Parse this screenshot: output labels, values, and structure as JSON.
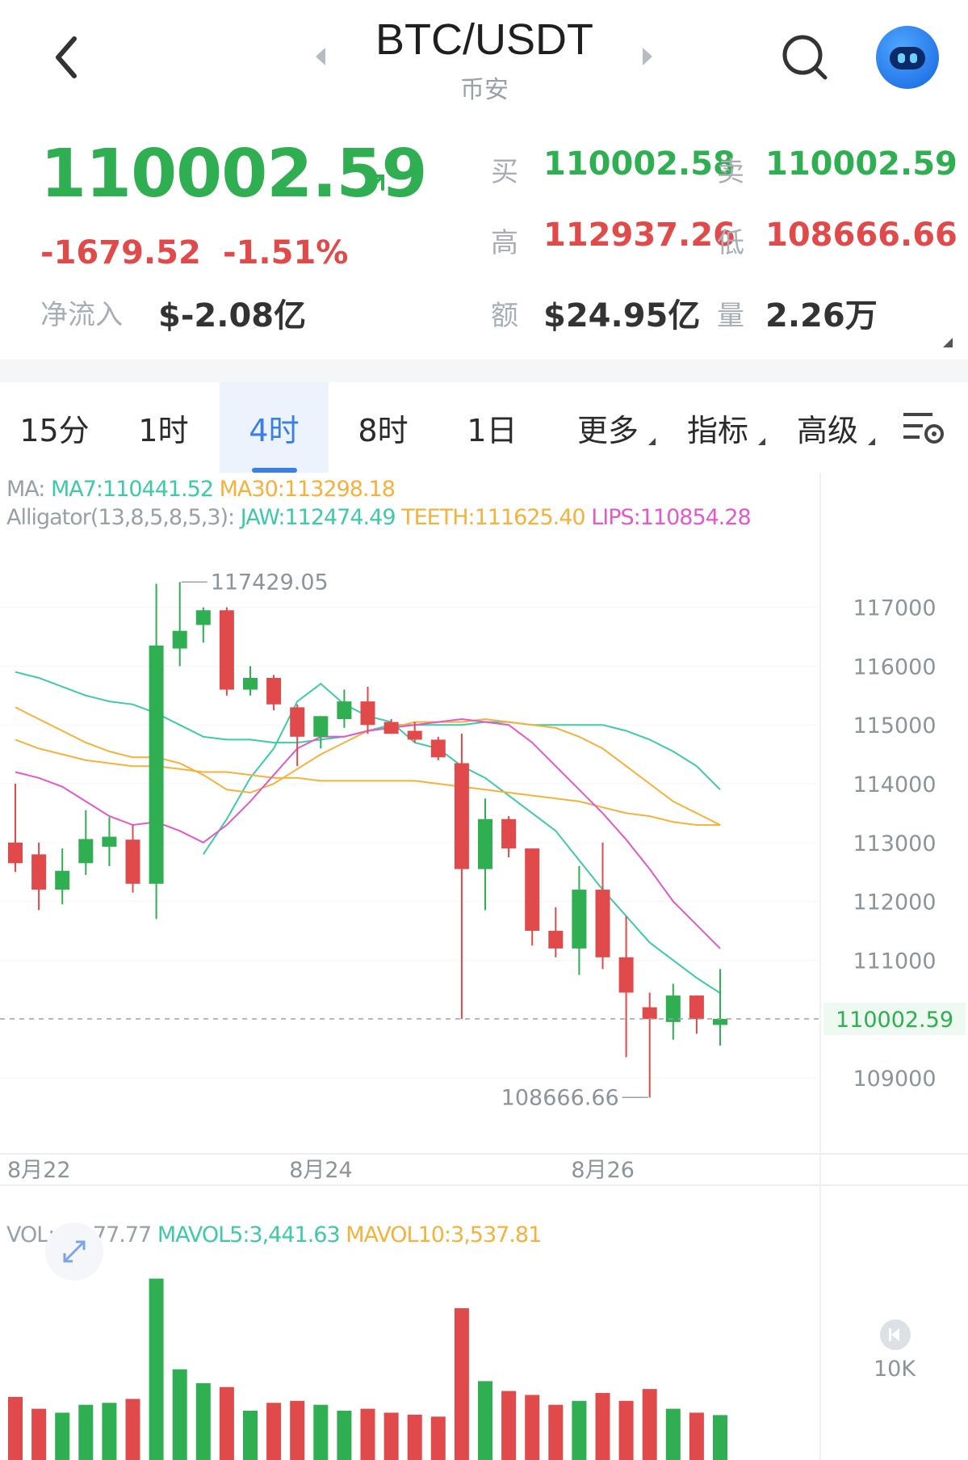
{
  "header": {
    "title": "BTC/USDT",
    "exchange": "币安"
  },
  "price": {
    "last": "110002.59",
    "change_abs": "-1679.52",
    "change_pct": "-1.51%",
    "inflow_label": "净流入",
    "inflow_value": "$-2.08亿"
  },
  "stats": {
    "buy_label": "买",
    "buy_value": "110002.58",
    "sell_label": "卖",
    "sell_value": "110002.59",
    "high_label": "高",
    "high_value": "112937.26",
    "low_label": "低",
    "low_value": "108666.66",
    "amount_label": "额",
    "amount_value": "$24.95亿",
    "volume_label": "量",
    "volume_value": "2.26万"
  },
  "tabs": [
    {
      "label": "15分",
      "active": false
    },
    {
      "label": "1时",
      "active": false
    },
    {
      "label": "4时",
      "active": true
    },
    {
      "label": "8时",
      "active": false
    },
    {
      "label": "1日",
      "active": false
    },
    {
      "label": "更多",
      "active": false,
      "dropdown": true
    },
    {
      "label": "指标",
      "active": false,
      "dropdown": true
    },
    {
      "label": "高级",
      "active": false,
      "dropdown": true
    }
  ],
  "indicators": {
    "ma_prefix": "MA:",
    "ma7": "MA7:110441.52",
    "ma30": "MA30:113298.18",
    "alligator_prefix": "Alligator(13,8,5,8,5,3):",
    "jaw": "JAW:112474.49",
    "teeth": "TEETH:111625.40",
    "lips": "LIPS:110854.28",
    "vol_prefix": "VOL: 2,277.77",
    "mavol5": "MAVOL5:3,441.63",
    "mavol10": "MAVOL10:3,537.81"
  },
  "colors": {
    "up": "#2fae52",
    "down": "#e04a4a",
    "ma7_jaw": "#3fc9a8",
    "ma30_teeth": "#f4b23c",
    "lips": "#e15ac8",
    "active_tab": "#3a7ee8"
  },
  "icons": [
    "back-arrow-icon",
    "prev-pair-icon",
    "next-pair-icon",
    "search-icon",
    "robot-avatar-icon",
    "trend-up-arrow-icon",
    "chart-settings-icon",
    "expand-icon",
    "scroll-to-latest-icon"
  ],
  "chart_data": {
    "type": "candlestick",
    "interval": "4时",
    "ylim": [
      108300,
      118300
    ],
    "y_ticks": [
      "117000",
      "116000",
      "115000",
      "114000",
      "113000",
      "112000",
      "111000",
      "109000"
    ],
    "current_price_label": "110002.59",
    "max_label": "117429.05",
    "min_label": "108666.66",
    "x_labels": [
      "8月22",
      "8月24",
      "8月26"
    ],
    "candles": [
      {
        "o": 113000,
        "h": 114000,
        "l": 112500,
        "c": 112650
      },
      {
        "o": 112800,
        "h": 113000,
        "l": 111850,
        "c": 112200
      },
      {
        "o": 112200,
        "h": 112900,
        "l": 111950,
        "c": 112520
      },
      {
        "o": 112650,
        "h": 113550,
        "l": 112450,
        "c": 113060
      },
      {
        "o": 112930,
        "h": 113430,
        "l": 112600,
        "c": 113100
      },
      {
        "o": 113050,
        "h": 113300,
        "l": 112150,
        "c": 112300
      },
      {
        "o": 112300,
        "h": 117400,
        "l": 111700,
        "c": 116350
      },
      {
        "o": 116300,
        "h": 117429.05,
        "l": 116000,
        "c": 116600
      },
      {
        "o": 116700,
        "h": 117000,
        "l": 116400,
        "c": 116950
      },
      {
        "o": 116950,
        "h": 117000,
        "l": 115500,
        "c": 115600
      },
      {
        "o": 115600,
        "h": 116000,
        "l": 115500,
        "c": 115800
      },
      {
        "o": 115800,
        "h": 115850,
        "l": 115250,
        "c": 115350
      },
      {
        "o": 115300,
        "h": 115350,
        "l": 114300,
        "c": 114800
      },
      {
        "o": 114800,
        "h": 115150,
        "l": 114600,
        "c": 115150
      },
      {
        "o": 115100,
        "h": 115600,
        "l": 114950,
        "c": 115400
      },
      {
        "o": 115400,
        "h": 115650,
        "l": 114850,
        "c": 115000
      },
      {
        "o": 115050,
        "h": 115100,
        "l": 114850,
        "c": 114850
      },
      {
        "o": 114900,
        "h": 115050,
        "l": 114700,
        "c": 114750
      },
      {
        "o": 114750,
        "h": 114800,
        "l": 114400,
        "c": 114450
      },
      {
        "o": 114350,
        "h": 114850,
        "l": 110000,
        "c": 112550
      },
      {
        "o": 112550,
        "h": 113750,
        "l": 111850,
        "c": 113400
      },
      {
        "o": 113400,
        "h": 113450,
        "l": 112750,
        "c": 112900
      },
      {
        "o": 112900,
        "h": 112900,
        "l": 111250,
        "c": 111500
      },
      {
        "o": 111500,
        "h": 111900,
        "l": 111050,
        "c": 111200
      },
      {
        "o": 111200,
        "h": 112600,
        "l": 110750,
        "c": 112200
      },
      {
        "o": 112200,
        "h": 113000,
        "l": 110850,
        "c": 111050
      },
      {
        "o": 111050,
        "h": 111750,
        "l": 109350,
        "c": 110450
      },
      {
        "o": 110200,
        "h": 110450,
        "l": 108666.66,
        "c": 110000
      },
      {
        "o": 109950,
        "h": 110600,
        "l": 109650,
        "c": 110400
      },
      {
        "o": 110400,
        "h": 110400,
        "l": 109750,
        "c": 110000
      },
      {
        "o": 109900,
        "h": 110850,
        "l": 109550,
        "c": 110002.59
      }
    ],
    "series": [
      {
        "name": "MA7",
        "values": [
          null,
          null,
          null,
          null,
          null,
          null,
          null,
          null,
          112800,
          113400,
          114100,
          114600,
          115400,
          115700,
          115350,
          115150,
          115050,
          114700,
          114600,
          114300,
          114100,
          113800,
          113500,
          113200,
          112700,
          112200,
          111750,
          111300,
          111000,
          110700,
          110441.52
        ]
      },
      {
        "name": "MA30",
        "values": [
          114750,
          114600,
          114500,
          114400,
          114350,
          114300,
          114300,
          114250,
          114200,
          114200,
          114150,
          114100,
          114100,
          114050,
          114050,
          114050,
          114050,
          114050,
          114000,
          113950,
          113900,
          113850,
          113800,
          113750,
          113700,
          113600,
          113500,
          113450,
          113350,
          113300,
          113298.18
        ]
      },
      {
        "name": "JAW",
        "values": [
          115900,
          115800,
          115650,
          115500,
          115400,
          115350,
          115200,
          115000,
          114800,
          114750,
          114750,
          114700,
          114700,
          114750,
          114800,
          114900,
          115000,
          115000,
          115000,
          115000,
          115050,
          115050,
          115000,
          115000,
          115000,
          115000,
          114900,
          114750,
          114550,
          114300,
          113900
        ]
      },
      {
        "name": "TEETH",
        "values": [
          115300,
          115100,
          114900,
          114700,
          114550,
          114450,
          114450,
          114350,
          114150,
          113900,
          113850,
          114000,
          114250,
          114500,
          114700,
          114900,
          114950,
          115050,
          115050,
          115050,
          115100,
          115050,
          115000,
          114950,
          114800,
          114600,
          114300,
          114000,
          113700,
          113500,
          113300
        ]
      },
      {
        "name": "LIPS",
        "values": [
          114200,
          114100,
          113950,
          113700,
          113450,
          113300,
          113350,
          113200,
          113000,
          113300,
          113700,
          114150,
          114600,
          114800,
          114800,
          114900,
          114950,
          115000,
          115050,
          115100,
          115050,
          115000,
          114700,
          114300,
          113900,
          113500,
          113050,
          112550,
          112000,
          111600,
          111200
        ]
      },
      {
        "name": "VOL",
        "values": [
          3200,
          2600,
          2400,
          2800,
          2900,
          3100,
          9200,
          4600,
          3900,
          3700,
          2500,
          2900,
          3000,
          2800,
          2500,
          2600,
          2400,
          2300,
          2200,
          7700,
          4000,
          3500,
          3300,
          2800,
          3000,
          3400,
          3000,
          3600,
          2600,
          2400,
          2277.77
        ]
      }
    ],
    "vol_ticks": [
      "10K"
    ]
  }
}
